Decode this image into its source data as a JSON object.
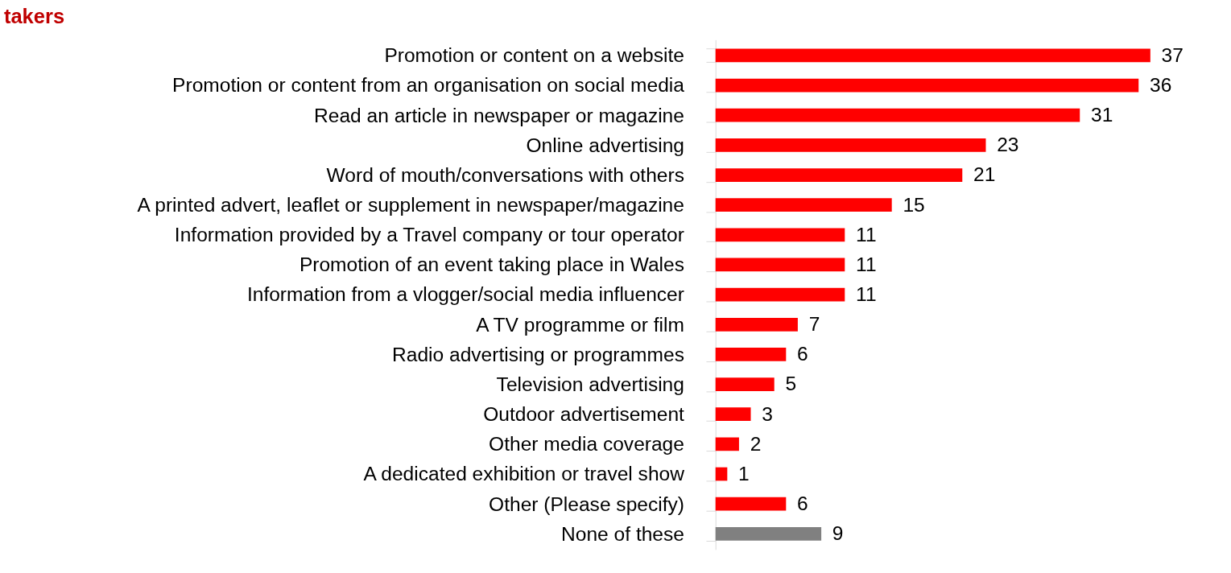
{
  "chart_data": {
    "type": "bar",
    "orientation": "horizontal",
    "title": "takers",
    "categories": [
      "Promotion or content on a website",
      "Promotion or content from an organisation on social media",
      "Read an article in newspaper or magazine",
      "Online advertising ",
      "Word of mouth/conversations with others",
      "A printed advert, leaflet or supplement in newspaper/magazine",
      "Information provided by a Travel company or tour operator",
      "Promotion of an event taking place in Wales ",
      "Information from a vlogger/social media influencer",
      "A TV programme or film ",
      "Radio advertising or programmes",
      "Television advertising",
      "Outdoor advertisement ",
      "Other media coverage ",
      "A dedicated exhibition or travel show",
      "Other (Please specify)",
      "None of these"
    ],
    "values": [
      37,
      36,
      31,
      23,
      21,
      15,
      11,
      11,
      11,
      7,
      6,
      5,
      3,
      2,
      1,
      6,
      9
    ],
    "colors": [
      "#ff0000",
      "#ff0000",
      "#ff0000",
      "#ff0000",
      "#ff0000",
      "#ff0000",
      "#ff0000",
      "#ff0000",
      "#ff0000",
      "#ff0000",
      "#ff0000",
      "#ff0000",
      "#ff0000",
      "#ff0000",
      "#ff0000",
      "#ff0000",
      "#808080"
    ],
    "data_labels": true
  }
}
